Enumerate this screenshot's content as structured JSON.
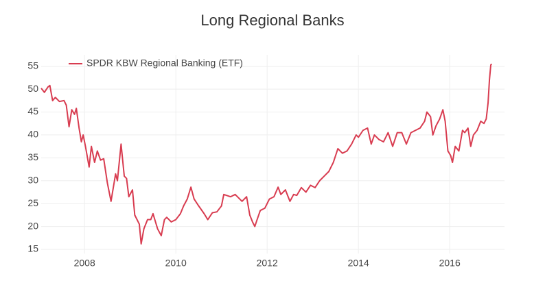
{
  "chart_data": {
    "type": "line",
    "title": "Long Regional Banks",
    "x": [
      2007.05,
      2007.12,
      2007.2,
      2007.24,
      2007.3,
      2007.36,
      2007.45,
      2007.55,
      2007.6,
      2007.66,
      2007.72,
      2007.78,
      2007.82,
      2007.88,
      2007.93,
      2007.97,
      2008.02,
      2008.1,
      2008.15,
      2008.22,
      2008.28,
      2008.35,
      2008.42,
      2008.5,
      2008.58,
      2008.68,
      2008.72,
      2008.8,
      2008.87,
      2008.92,
      2008.97,
      2009.05,
      2009.1,
      2009.2,
      2009.24,
      2009.3,
      2009.38,
      2009.45,
      2009.5,
      2009.6,
      2009.68,
      2009.75,
      2009.8,
      2009.9,
      2010.0,
      2010.1,
      2010.17,
      2010.25,
      2010.33,
      2010.4,
      2010.5,
      2010.62,
      2010.7,
      2010.8,
      2010.9,
      2011.0,
      2011.05,
      2011.2,
      2011.3,
      2011.45,
      2011.55,
      2011.62,
      2011.68,
      2011.73,
      2011.78,
      2011.85,
      2011.95,
      2012.05,
      2012.15,
      2012.24,
      2012.3,
      2012.4,
      2012.5,
      2012.58,
      2012.65,
      2012.75,
      2012.85,
      2012.95,
      2013.05,
      2013.15,
      2013.25,
      2013.35,
      2013.45,
      2013.55,
      2013.65,
      2013.75,
      2013.85,
      2013.95,
      2014.0,
      2014.1,
      2014.2,
      2014.28,
      2014.35,
      2014.45,
      2014.55,
      2014.65,
      2014.75,
      2014.85,
      2014.95,
      2015.05,
      2015.15,
      2015.25,
      2015.35,
      2015.45,
      2015.5,
      2015.58,
      2015.63,
      2015.7,
      2015.78,
      2015.85,
      2015.9,
      2015.96,
      2016.02,
      2016.06,
      2016.12,
      2016.2,
      2016.28,
      2016.33,
      2016.4,
      2016.46,
      2016.52,
      2016.6,
      2016.68,
      2016.75,
      2016.8,
      2016.84,
      2016.87,
      2016.9,
      2016.92
    ],
    "series": [
      {
        "name": "SPDR KBW Regional Banking (ETF)",
        "color": "#d83c50",
        "values": [
          50.2,
          49.3,
          50.5,
          50.8,
          47.5,
          48.2,
          47.3,
          47.5,
          46.5,
          41.8,
          45.5,
          44.5,
          45.8,
          41.5,
          38.5,
          40,
          37.5,
          33,
          37.5,
          34,
          36.5,
          34.5,
          34.8,
          29.5,
          25.5,
          31.5,
          30,
          38,
          31,
          30.5,
          26.5,
          28,
          22.5,
          20.5,
          16.2,
          19.5,
          21.5,
          21.5,
          22.8,
          19.5,
          18,
          21.5,
          22,
          21,
          21.5,
          22.8,
          24.5,
          26,
          28.6,
          26,
          24.5,
          22.8,
          21.5,
          23,
          23.2,
          24.5,
          27,
          26.5,
          27,
          25.5,
          26.5,
          22.5,
          21,
          20,
          21.5,
          23.5,
          24,
          26,
          26.5,
          28.6,
          27,
          28,
          25.5,
          27,
          26.8,
          28.5,
          27.5,
          29,
          28.5,
          30,
          31,
          32,
          34,
          37,
          36,
          36.5,
          38,
          40,
          39.5,
          41,
          41.5,
          38,
          40,
          39,
          38.5,
          40.5,
          37.5,
          40.5,
          40.5,
          38,
          40.5,
          41,
          41.5,
          43,
          45,
          44,
          40,
          42,
          43.5,
          45.5,
          43,
          36.5,
          35.5,
          34,
          37.5,
          36.5,
          41,
          40.5,
          41.5,
          37.5,
          40,
          41,
          43,
          42.5,
          43.5,
          47,
          52,
          55.3,
          55.5
        ]
      }
    ],
    "xlim": [
      2007.05,
      2017.2
    ],
    "xticks": [
      2008,
      2010,
      2012,
      2014,
      2016
    ],
    "ylim": [
      14.1,
      57.5
    ],
    "yticks": [
      15,
      20,
      25,
      30,
      35,
      40,
      45,
      50,
      55
    ],
    "grid": true,
    "legend": "top-left"
  }
}
